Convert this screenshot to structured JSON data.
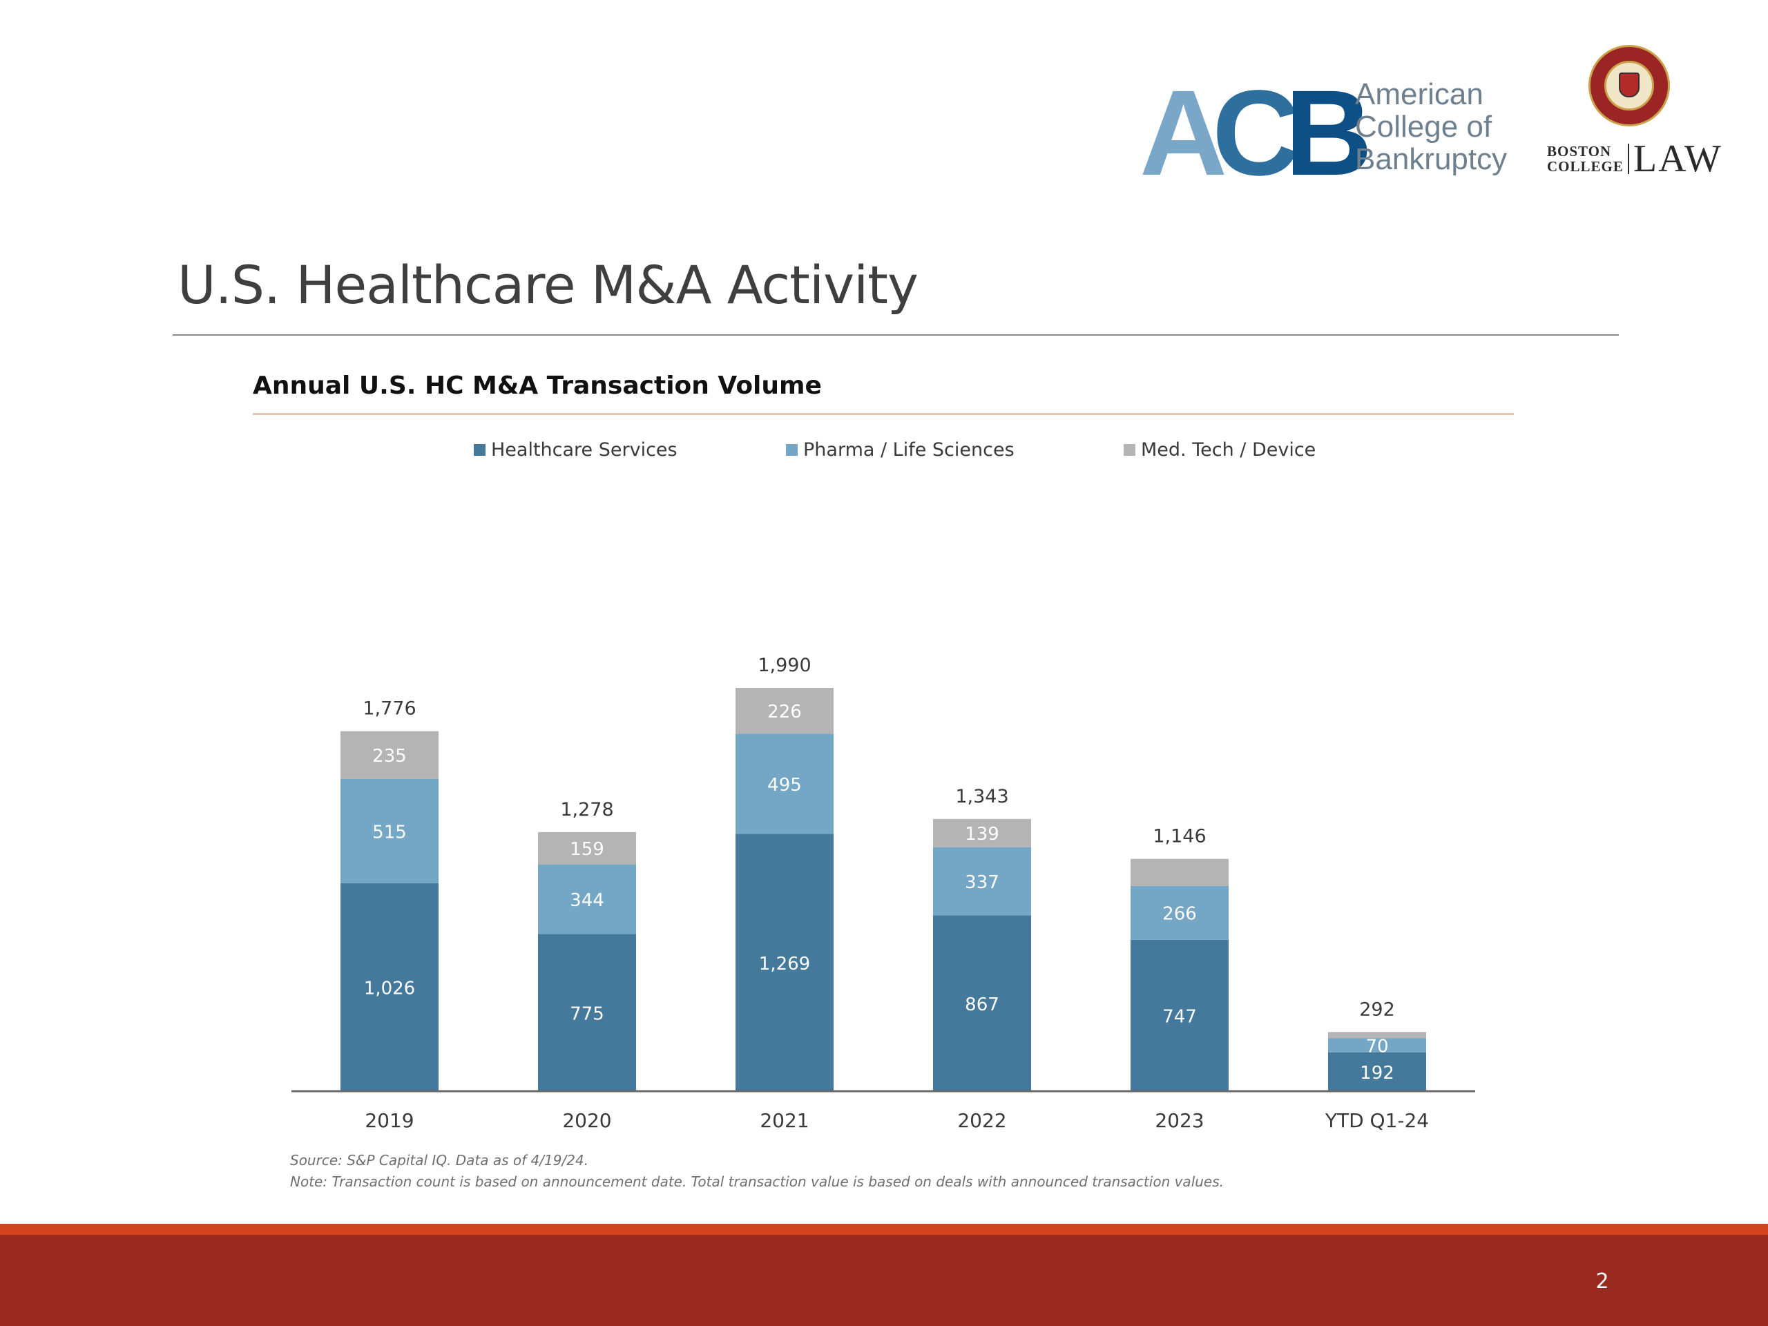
{
  "logos": {
    "acb_letters": "ACB",
    "acb_words": [
      "American",
      "College of",
      "Bankruptcy"
    ],
    "bc_small": [
      "BOSTON",
      "COLLEGE"
    ],
    "bc_law": "LAW"
  },
  "slide": {
    "title": "U.S. Healthcare M&A Activity",
    "page_number": "2"
  },
  "chart_data": {
    "type": "bar",
    "stacked": true,
    "title": "Annual U.S. HC M&A Transaction Volume",
    "categories": [
      "2019",
      "2020",
      "2021",
      "2022",
      "2023",
      "YTD Q1-24"
    ],
    "series": [
      {
        "name": "Healthcare Services",
        "color": "#44799b",
        "values": [
          1026,
          775,
          1269,
          867,
          747,
          192
        ],
        "labels": [
          "1,026",
          "775",
          "1,269",
          "867",
          "747",
          "192"
        ]
      },
      {
        "name": "Pharma / Life Sciences",
        "color": "#73a7c5",
        "values": [
          515,
          344,
          495,
          337,
          266,
          70
        ],
        "labels": [
          "515",
          "344",
          "495",
          "337",
          "266",
          "70"
        ]
      },
      {
        "name": "Med. Tech / Device",
        "color": "#b4b4b4",
        "values": [
          235,
          159,
          226,
          139,
          133,
          30
        ],
        "labels": [
          "235",
          "159",
          "226",
          "139",
          "",
          ""
        ]
      }
    ],
    "totals": [
      "1,776",
      "1,278",
      "1,990",
      "1,343",
      "1,146",
      "292"
    ],
    "legend_position": "top",
    "grid": false,
    "ylim": [
      0,
      2200
    ]
  },
  "notes": {
    "source": "Source: S&P Capital IQ. Data as of 4/19/24.",
    "note": "Note: Transaction count is based on announcement date. Total transaction value is based on deals with announced transaction values."
  }
}
